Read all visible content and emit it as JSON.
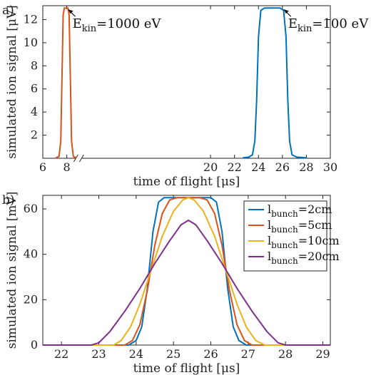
{
  "chart_data": [
    {
      "type": "line",
      "panel_label": "a)",
      "xlabel": "time of flight [μs]",
      "ylabel": "simulated ion signal [μV]",
      "xlim": [
        6,
        30
      ],
      "ylim": [
        0,
        13.2
      ],
      "x_ticks": [
        6,
        8,
        20,
        22,
        24,
        26,
        28,
        30
      ],
      "y_ticks": [
        2,
        4,
        6,
        8,
        10,
        12
      ],
      "axis_break_x": 9,
      "annotations": [
        {
          "text_main": "E",
          "text_sub": "kin",
          "text_rest": "=1000 eV",
          "x": 8.0,
          "y": 13.0
        },
        {
          "text_main": "E",
          "text_sub": "kin",
          "text_rest": "=100 eV",
          "x": 26.0,
          "y": 13.0
        }
      ],
      "series": [
        {
          "color": "#d95319",
          "points": [
            [
              7.1,
              0.05
            ],
            [
              7.35,
              0.15
            ],
            [
              7.5,
              1.5
            ],
            [
              7.6,
              7
            ],
            [
              7.7,
              12.4
            ],
            [
              7.8,
              13.0
            ],
            [
              8.1,
              13.0
            ],
            [
              8.2,
              12.4
            ],
            [
              8.3,
              7
            ],
            [
              8.4,
              1.5
            ],
            [
              8.55,
              0.15
            ],
            [
              8.8,
              0.05
            ]
          ]
        },
        {
          "color": "#0072bd",
          "points": [
            [
              22.7,
              0.05
            ],
            [
              23.2,
              0.1
            ],
            [
              23.5,
              0.3
            ],
            [
              23.7,
              1.5
            ],
            [
              23.85,
              5
            ],
            [
              24.0,
              10.5
            ],
            [
              24.2,
              12.8
            ],
            [
              24.5,
              13.0
            ],
            [
              25.8,
              13.0
            ],
            [
              26.1,
              12.8
            ],
            [
              26.3,
              10.5
            ],
            [
              26.45,
              5
            ],
            [
              26.6,
              1.5
            ],
            [
              26.8,
              0.3
            ],
            [
              27.2,
              0.1
            ],
            [
              28.0,
              0.05
            ]
          ]
        }
      ]
    },
    {
      "type": "line",
      "panel_label": "b)",
      "xlabel": "time of flight [μs]",
      "ylabel": "simulated ion signal [mV]",
      "xlim": [
        21.5,
        29.2
      ],
      "ylim": [
        0,
        66
      ],
      "x_ticks": [
        22,
        23,
        24,
        25,
        26,
        27,
        28,
        29
      ],
      "y_ticks": [
        0,
        20,
        40,
        60
      ],
      "legend_position": "top-right",
      "series": [
        {
          "name_main": "l",
          "name_sub": "bunch",
          "name_rest": "=2cm",
          "color": "#0072bd",
          "points": [
            [
              21.5,
              0
            ],
            [
              23.8,
              0
            ],
            [
              24.0,
              2
            ],
            [
              24.15,
              8
            ],
            [
              24.3,
              25
            ],
            [
              24.45,
              50
            ],
            [
              24.6,
              63
            ],
            [
              24.75,
              65
            ],
            [
              26.0,
              65
            ],
            [
              26.15,
              63
            ],
            [
              26.3,
              50
            ],
            [
              26.45,
              25
            ],
            [
              26.6,
              8
            ],
            [
              26.75,
              2
            ],
            [
              26.95,
              0
            ],
            [
              29.2,
              0
            ]
          ]
        },
        {
          "name_main": "l",
          "name_sub": "bunch",
          "name_rest": "=5cm",
          "color": "#d95319",
          "points": [
            [
              21.5,
              0
            ],
            [
              23.7,
              0
            ],
            [
              23.9,
              2
            ],
            [
              24.1,
              9
            ],
            [
              24.3,
              24
            ],
            [
              24.5,
              44
            ],
            [
              24.7,
              58
            ],
            [
              24.9,
              64
            ],
            [
              25.1,
              65
            ],
            [
              25.7,
              65
            ],
            [
              25.9,
              64
            ],
            [
              26.1,
              58
            ],
            [
              26.3,
              44
            ],
            [
              26.5,
              24
            ],
            [
              26.7,
              9
            ],
            [
              26.9,
              2
            ],
            [
              27.1,
              0
            ],
            [
              29.2,
              0
            ]
          ]
        },
        {
          "name_main": "l",
          "name_sub": "bunch",
          "name_rest": "=10cm",
          "color": "#edb120",
          "points": [
            [
              21.5,
              0
            ],
            [
              23.4,
              0
            ],
            [
              23.6,
              2
            ],
            [
              23.85,
              8
            ],
            [
              24.1,
              18
            ],
            [
              24.4,
              33
            ],
            [
              24.7,
              48
            ],
            [
              25.0,
              59
            ],
            [
              25.25,
              64
            ],
            [
              25.4,
              65
            ],
            [
              25.55,
              64
            ],
            [
              25.8,
              59
            ],
            [
              26.1,
              48
            ],
            [
              26.4,
              33
            ],
            [
              26.7,
              18
            ],
            [
              26.95,
              8
            ],
            [
              27.2,
              2
            ],
            [
              27.45,
              0
            ],
            [
              29.2,
              0
            ]
          ]
        },
        {
          "name_main": "l",
          "name_sub": "bunch",
          "name_rest": "=20cm",
          "color": "#7e2f8e",
          "points": [
            [
              21.5,
              0
            ],
            [
              22.8,
              0
            ],
            [
              23.0,
              1
            ],
            [
              23.3,
              6
            ],
            [
              23.7,
              15
            ],
            [
              24.1,
              25
            ],
            [
              24.5,
              36
            ],
            [
              24.9,
              46
            ],
            [
              25.2,
              53
            ],
            [
              25.4,
              55
            ],
            [
              25.6,
              53
            ],
            [
              25.9,
              46
            ],
            [
              26.3,
              36
            ],
            [
              26.7,
              25
            ],
            [
              27.1,
              15
            ],
            [
              27.5,
              6
            ],
            [
              27.8,
              1
            ],
            [
              28.0,
              0
            ],
            [
              29.2,
              0
            ]
          ]
        }
      ]
    }
  ]
}
